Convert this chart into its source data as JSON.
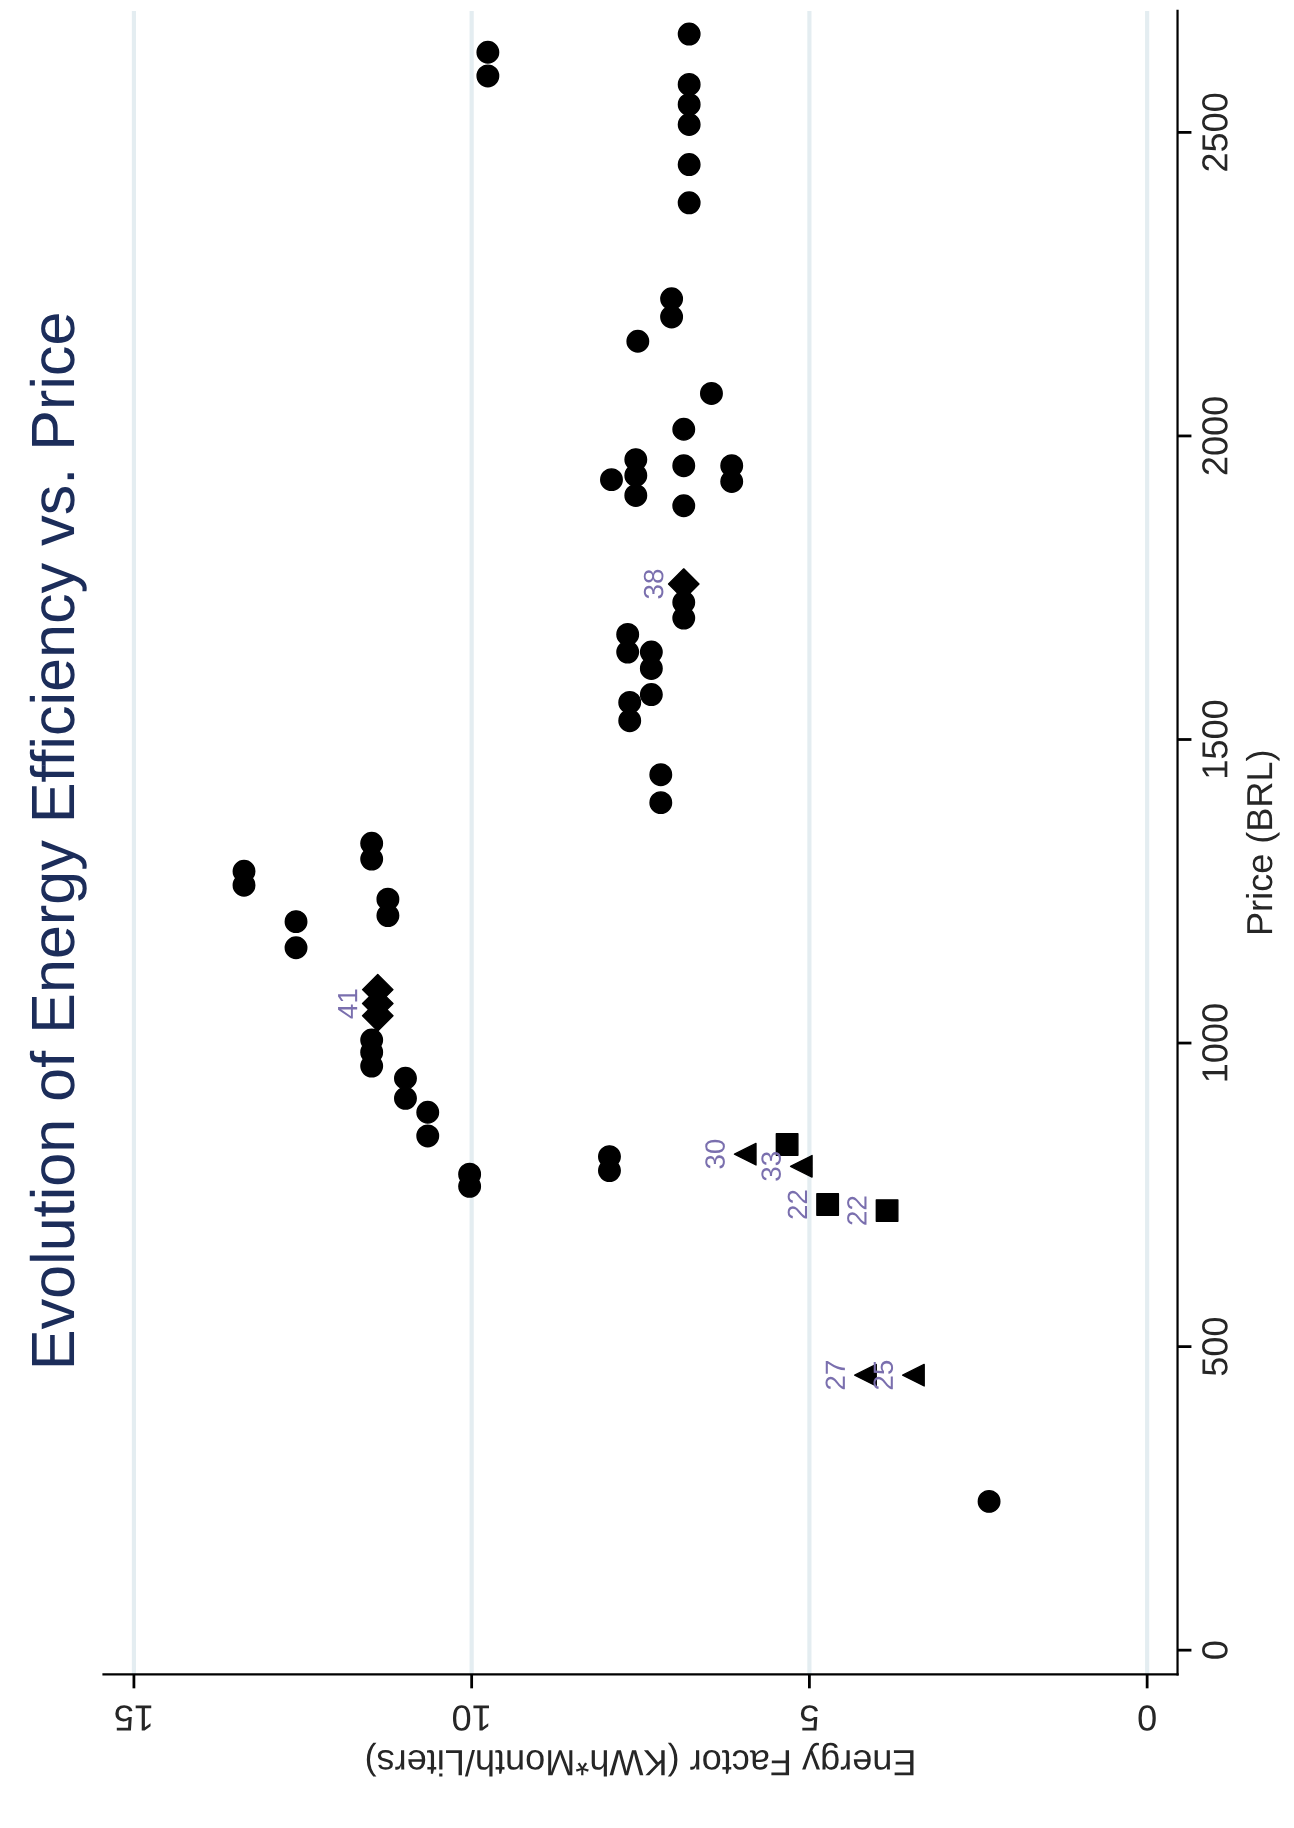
{
  "chart_data": {
    "type": "scatter",
    "title": "Evolution of Energy Efficiency vs. Price",
    "xlabel": "Energy Factor (KWh*Month/Liters)",
    "ylabel": "Price (BRL)",
    "xlim": [
      15.45,
      -0.45
    ],
    "xticks": [
      15,
      10,
      5,
      0
    ],
    "ylim": [
      -40,
      2700
    ],
    "yticks": [
      0,
      500,
      1000,
      1500,
      2000,
      2500
    ],
    "grid": "x",
    "legend": false,
    "series": [
      {
        "color": "#000000",
        "marker": "circle",
        "x": [
          13.37,
          13.37,
          12.6,
          12.6,
          11.48,
          11.48,
          11.24,
          11.24,
          11.48,
          11.48,
          11.48,
          10.98,
          10.98,
          10.65,
          10.65,
          10.03,
          10.03,
          9.76,
          9.76,
          7.96,
          7.96,
          6.78,
          6.78,
          6.78,
          6.78,
          6.78,
          6.78,
          7.04,
          7.04,
          7.54,
          6.45,
          6.86,
          6.86,
          6.86,
          6.15,
          6.15,
          7.57,
          7.57,
          7.57,
          7.93,
          6.86,
          6.86,
          7.69,
          7.69,
          7.34,
          7.34,
          7.34,
          7.2,
          7.2,
          2.34
        ],
        "values": [
          1283,
          1260,
          1200,
          1157,
          1329,
          1303,
          1237,
          1210,
          1005,
          985,
          962,
          942,
          909,
          886,
          847,
          784,
          764,
          2632,
          2593,
          813,
          790,
          2662,
          2579,
          2546,
          2513,
          2447,
          2384,
          2226,
          2196,
          2156,
          2070,
          2011,
          1951,
          1885,
          1951,
          1925,
          1961,
          1935,
          1902,
          1928,
          1726,
          1700,
          1673,
          1644,
          1644,
          1617,
          1574,
          1442,
          1396,
          245
        ]
      },
      {
        "color": "#000000",
        "marker": "circle",
        "x": [
          7.66,
          7.66
        ],
        "values": [
          1561,
          1531
        ]
      },
      {
        "color": "#000000",
        "marker": "triangle",
        "x": [
          5.95,
          4.17,
          3.46,
          5.12
        ],
        "values": [
          817,
          453,
          453,
          797
        ]
      },
      {
        "color": "#000000",
        "marker": "square",
        "x": [
          5.33,
          4.73,
          3.85
        ],
        "values": [
          833,
          734,
          724
        ]
      },
      {
        "color": "#000000",
        "marker": "diamond",
        "x": [
          11.39,
          11.39,
          11.39,
          6.86
        ],
        "values": [
          1088,
          1065,
          1045,
          1756
        ]
      }
    ],
    "annotations": [
      {
        "text": "27",
        "x": 4.17,
        "y": 453
      },
      {
        "text": "25",
        "x": 3.46,
        "y": 453
      },
      {
        "text": "22",
        "x": 4.73,
        "y": 734
      },
      {
        "text": "22",
        "x": 3.85,
        "y": 724
      },
      {
        "text": "30",
        "x": 5.95,
        "y": 817
      },
      {
        "text": "33",
        "x": 5.12,
        "y": 797
      },
      {
        "text": "41",
        "x": 11.39,
        "y": 1065
      },
      {
        "text": "38",
        "x": 6.86,
        "y": 1756
      }
    ]
  }
}
